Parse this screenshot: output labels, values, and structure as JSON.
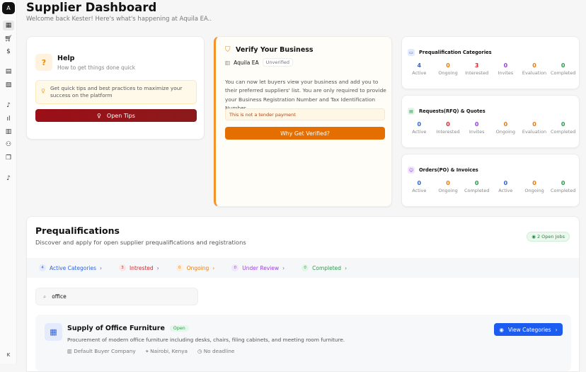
{
  "sidebar": {
    "logo": "A",
    "avatar": "K",
    "icons": [
      "dashboard-icon",
      "cart-icon",
      "dollar-icon",
      "document-icon",
      "file-check-icon",
      "bell-icon",
      "chart-icon",
      "building-icon",
      "users-icon",
      "files-icon",
      "notification-icon"
    ]
  },
  "header": {
    "title": "Supplier Dashboard",
    "subtitle": "Welcome back Kester! Here's what's happening at Aquila EA.."
  },
  "help": {
    "title": "Help",
    "subtitle": "How to get things done quick",
    "tip": "Get quick tips and best practices to maximize your success on the platform",
    "button": "Open Tips"
  },
  "verify": {
    "title": "Verify Your Business",
    "company": "Aquila EA",
    "status": "Unverified",
    "text": "You can now let buyers view your business and add you to their preferred suppliers' list. You are only required to provide your Business Registration Number and Tax Identification Number.",
    "note": "This is not a tender payment",
    "button": "Why Get Verified?"
  },
  "stats": [
    {
      "title": "Prequalification Categories",
      "icon": "folder-icon",
      "items": [
        {
          "value": "4",
          "label": "Active",
          "color": "#2f63e0"
        },
        {
          "value": "0",
          "label": "Ongoing",
          "color": "#e87b0c"
        },
        {
          "value": "3",
          "label": "Interested",
          "color": "#d6262c"
        },
        {
          "value": "0",
          "label": "Invites",
          "color": "#9b3fe6"
        },
        {
          "value": "0",
          "label": "Evaluation",
          "color": "#e87b0c"
        },
        {
          "value": "0",
          "label": "Completed",
          "color": "#2d9a4d"
        }
      ]
    },
    {
      "title": "Requests(RFQ) & Quotes",
      "icon": "document-icon",
      "items": [
        {
          "value": "0",
          "label": "Active",
          "color": "#2f63e0"
        },
        {
          "value": "0",
          "label": "Interested",
          "color": "#d6262c"
        },
        {
          "value": "0",
          "label": "Invites",
          "color": "#9b3fe6"
        },
        {
          "value": "0",
          "label": "Ongoing",
          "color": "#e87b0c"
        },
        {
          "value": "0",
          "label": "Evaluation",
          "color": "#e87b0c"
        },
        {
          "value": "0",
          "label": "Completed",
          "color": "#2d9a4d"
        }
      ]
    },
    {
      "title": "Orders(PO) & Invoices",
      "icon": "order-icon",
      "items": [
        {
          "value": "0",
          "label": "Active",
          "color": "#2f63e0"
        },
        {
          "value": "0",
          "label": "Ongoing",
          "color": "#e87b0c"
        },
        {
          "value": "0",
          "label": "Completed",
          "color": "#2d9a4d"
        },
        {
          "value": "0",
          "label": "Active",
          "color": "#2f63e0"
        },
        {
          "value": "0",
          "label": "Ongoing",
          "color": "#e87b0c"
        },
        {
          "value": "0",
          "label": "Completed",
          "color": "#2d9a4d"
        }
      ]
    }
  ],
  "prequal": {
    "title": "Prequalifications",
    "subtitle": "Discover and apply for open supplier prequalifications and registrations",
    "open_jobs": "2 Open Jobs",
    "tabs": [
      {
        "count": "4",
        "label": "Active Categories",
        "color": "#2f63e0",
        "bg": "#e4ebfd"
      },
      {
        "count": "3",
        "label": "Intrested",
        "color": "#d6262c",
        "bg": "#fde6e6"
      },
      {
        "count": "0",
        "label": "Ongoing",
        "color": "#e87b0c",
        "bg": "#fdeedd"
      },
      {
        "count": "0",
        "label": "Under Review",
        "color": "#9b3fe6",
        "bg": "#f0e6fd"
      },
      {
        "count": "0",
        "label": "Completed",
        "color": "#2d9a4d",
        "bg": "#e3f5e8"
      }
    ],
    "search_value": "office",
    "item": {
      "title": "Supply of Office Furniture",
      "status": "Open",
      "description": "Procurement of modern office furniture including desks, chairs, filing cabinets, and meeting room furniture.",
      "buyer": "Default Buyer Company",
      "location": "Nairobi, Kenya",
      "deadline": "No deadline",
      "button": "View Categories"
    }
  }
}
